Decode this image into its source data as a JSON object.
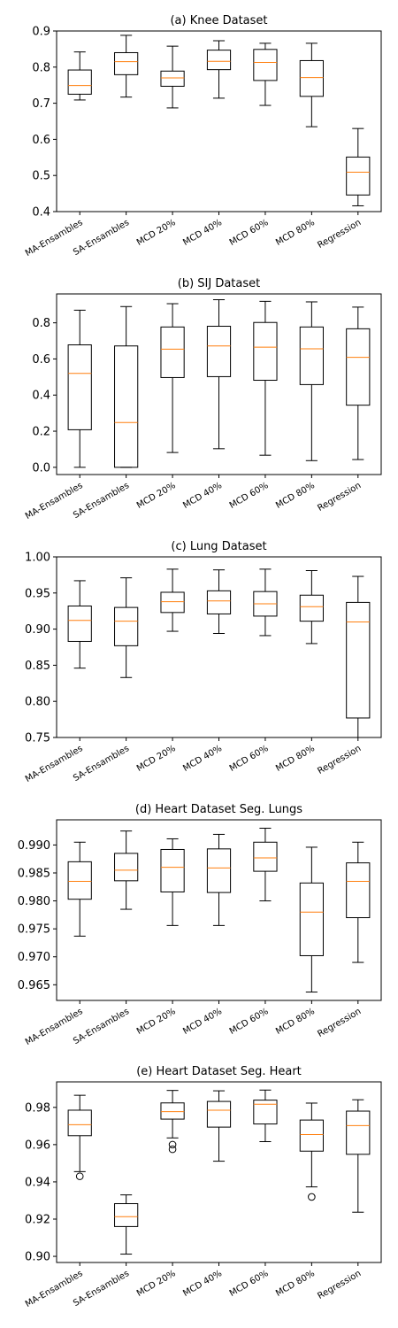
{
  "chart_data": [
    {
      "type": "boxplot",
      "title": "(a) Knee Dataset",
      "categories": [
        "MA-Ensambles",
        "SA-Ensambles",
        "MCD 20%",
        "MCD 40%",
        "MCD 60%",
        "MCD 80%",
        "Regression"
      ],
      "ylim": [
        0.4,
        0.9
      ],
      "yticks": [
        0.4,
        0.5,
        0.6,
        0.7,
        0.8,
        0.9
      ],
      "ytick_labels": [
        "0.4",
        "0.5",
        "0.6",
        "0.7",
        "0.8",
        "0.9"
      ],
      "boxes": [
        {
          "whislo": 0.709,
          "q1": 0.725,
          "med": 0.749,
          "q3": 0.792,
          "whishi": 0.842,
          "fliers": []
        },
        {
          "whislo": 0.717,
          "q1": 0.779,
          "med": 0.815,
          "q3": 0.84,
          "whishi": 0.888,
          "fliers": []
        },
        {
          "whislo": 0.687,
          "q1": 0.747,
          "med": 0.77,
          "q3": 0.789,
          "whishi": 0.858,
          "fliers": []
        },
        {
          "whislo": 0.714,
          "q1": 0.793,
          "med": 0.816,
          "q3": 0.847,
          "whishi": 0.873,
          "fliers": []
        },
        {
          "whislo": 0.694,
          "q1": 0.763,
          "med": 0.813,
          "q3": 0.849,
          "whishi": 0.866,
          "fliers": []
        },
        {
          "whislo": 0.635,
          "q1": 0.719,
          "med": 0.771,
          "q3": 0.818,
          "whishi": 0.866,
          "fliers": []
        },
        {
          "whislo": 0.416,
          "q1": 0.446,
          "med": 0.509,
          "q3": 0.551,
          "whishi": 0.63,
          "fliers": []
        }
      ]
    },
    {
      "type": "boxplot",
      "title": "(b) SIJ Dataset",
      "categories": [
        "MA-Ensambles",
        "SA-Ensambles",
        "MCD 20%",
        "MCD 40%",
        "MCD 60%",
        "MCD 80%",
        "Regression"
      ],
      "ylim": [
        -0.04,
        0.96
      ],
      "yticks": [
        0.0,
        0.2,
        0.4,
        0.6,
        0.8
      ],
      "ytick_labels": [
        "0.0",
        "0.2",
        "0.4",
        "0.6",
        "0.8"
      ],
      "boxes": [
        {
          "whislo": 0.0,
          "q1": 0.208,
          "med": 0.52,
          "q3": 0.678,
          "whishi": 0.87,
          "fliers": []
        },
        {
          "whislo": 0.0,
          "q1": 0.0,
          "med": 0.248,
          "q3": 0.672,
          "whishi": 0.89,
          "fliers": []
        },
        {
          "whislo": 0.082,
          "q1": 0.497,
          "med": 0.654,
          "q3": 0.777,
          "whishi": 0.906,
          "fliers": []
        },
        {
          "whislo": 0.103,
          "q1": 0.502,
          "med": 0.672,
          "q3": 0.781,
          "whishi": 0.928,
          "fliers": []
        },
        {
          "whislo": 0.067,
          "q1": 0.482,
          "med": 0.665,
          "q3": 0.802,
          "whishi": 0.919,
          "fliers": []
        },
        {
          "whislo": 0.037,
          "q1": 0.458,
          "med": 0.656,
          "q3": 0.777,
          "whishi": 0.916,
          "fliers": []
        },
        {
          "whislo": 0.043,
          "q1": 0.344,
          "med": 0.609,
          "q3": 0.767,
          "whishi": 0.887,
          "fliers": []
        }
      ]
    },
    {
      "type": "boxplot",
      "title": "(c) Lung Dataset",
      "categories": [
        "MA-Ensambles",
        "SA-Ensambles",
        "MCD 20%",
        "MCD 40%",
        "MCD 60%",
        "MCD 80%",
        "Regression"
      ],
      "ylim": [
        0.75,
        1.0
      ],
      "yticks": [
        0.75,
        0.8,
        0.85,
        0.9,
        0.95,
        1.0
      ],
      "ytick_labels": [
        "0.75",
        "0.80",
        "0.85",
        "0.90",
        "0.95",
        "1.00"
      ],
      "boxes": [
        {
          "whislo": 0.846,
          "q1": 0.883,
          "med": 0.912,
          "q3": 0.932,
          "whishi": 0.967,
          "fliers": []
        },
        {
          "whislo": 0.833,
          "q1": 0.877,
          "med": 0.911,
          "q3": 0.93,
          "whishi": 0.971,
          "fliers": []
        },
        {
          "whislo": 0.897,
          "q1": 0.923,
          "med": 0.938,
          "q3": 0.951,
          "whishi": 0.983,
          "fliers": []
        },
        {
          "whislo": 0.894,
          "q1": 0.921,
          "med": 0.939,
          "q3": 0.953,
          "whishi": 0.982,
          "fliers": []
        },
        {
          "whislo": 0.891,
          "q1": 0.918,
          "med": 0.935,
          "q3": 0.952,
          "whishi": 0.983,
          "fliers": []
        },
        {
          "whislo": 0.88,
          "q1": 0.911,
          "med": 0.931,
          "q3": 0.947,
          "whishi": 0.981,
          "fliers": []
        },
        {
          "whislo": 0.75,
          "q1": 0.777,
          "med": 0.91,
          "q3": 0.937,
          "whishi": 0.973,
          "fliers": []
        }
      ]
    },
    {
      "type": "boxplot",
      "title": "(d) Heart Dataset Seg. Lungs",
      "categories": [
        "MA-Ensambles",
        "SA-Ensambles",
        "MCD 20%",
        "MCD 40%",
        "MCD 60%",
        "MCD 80%",
        "Regression"
      ],
      "ylim": [
        0.9622,
        0.9945
      ],
      "yticks": [
        0.965,
        0.97,
        0.975,
        0.98,
        0.985,
        0.99
      ],
      "ytick_labels": [
        "0.965",
        "0.970",
        "0.975",
        "0.980",
        "0.985",
        "0.990"
      ],
      "boxes": [
        {
          "whislo": 0.9737,
          "q1": 0.9803,
          "med": 0.9835,
          "q3": 0.987,
          "whishi": 0.9905,
          "fliers": []
        },
        {
          "whislo": 0.9785,
          "q1": 0.9836,
          "med": 0.9855,
          "q3": 0.9885,
          "whishi": 0.9925,
          "fliers": []
        },
        {
          "whislo": 0.9756,
          "q1": 0.9816,
          "med": 0.986,
          "q3": 0.9892,
          "whishi": 0.9911,
          "fliers": []
        },
        {
          "whislo": 0.9756,
          "q1": 0.9815,
          "med": 0.9859,
          "q3": 0.9893,
          "whishi": 0.9919,
          "fliers": []
        },
        {
          "whislo": 0.98,
          "q1": 0.9853,
          "med": 0.9877,
          "q3": 0.9905,
          "whishi": 0.993,
          "fliers": []
        },
        {
          "whislo": 0.9637,
          "q1": 0.9702,
          "med": 0.978,
          "q3": 0.9832,
          "whishi": 0.9896,
          "fliers": []
        },
        {
          "whislo": 0.969,
          "q1": 0.977,
          "med": 0.9835,
          "q3": 0.9868,
          "whishi": 0.9905,
          "fliers": []
        }
      ]
    },
    {
      "type": "boxplot",
      "title": "(e) Heart Dataset Seg. Heart",
      "categories": [
        "MA-Ensambles",
        "SA-Ensambles",
        "MCD 20%",
        "MCD 40%",
        "MCD 60%",
        "MCD 80%",
        "Regression"
      ],
      "ylim": [
        0.8967,
        0.9937
      ],
      "yticks": [
        0.9,
        0.92,
        0.94,
        0.96,
        0.98
      ],
      "ytick_labels": [
        "0.90",
        "0.92",
        "0.94",
        "0.96",
        "0.98"
      ],
      "boxes": [
        {
          "whislo": 0.9455,
          "q1": 0.9648,
          "med": 0.9707,
          "q3": 0.9785,
          "whishi": 0.9865,
          "fliers": [
            0.943
          ]
        },
        {
          "whislo": 0.9012,
          "q1": 0.916,
          "med": 0.9213,
          "q3": 0.9283,
          "whishi": 0.933,
          "fliers": []
        },
        {
          "whislo": 0.9636,
          "q1": 0.9737,
          "med": 0.9777,
          "q3": 0.9824,
          "whishi": 0.9891,
          "fliers": [
            0.96,
            0.9575
          ]
        },
        {
          "whislo": 0.9511,
          "q1": 0.9694,
          "med": 0.9785,
          "q3": 0.9832,
          "whishi": 0.9889,
          "fliers": []
        },
        {
          "whislo": 0.9616,
          "q1": 0.9711,
          "med": 0.9817,
          "q3": 0.9839,
          "whishi": 0.9893,
          "fliers": []
        },
        {
          "whislo": 0.9373,
          "q1": 0.9565,
          "med": 0.9654,
          "q3": 0.9732,
          "whishi": 0.9823,
          "fliers": [
            0.9319
          ]
        },
        {
          "whislo": 0.9237,
          "q1": 0.9548,
          "med": 0.9702,
          "q3": 0.978,
          "whishi": 0.9841,
          "fliers": []
        }
      ]
    }
  ],
  "colors": {
    "box": "#000000",
    "median": "#ff7f0e",
    "background": "#ffffff"
  }
}
